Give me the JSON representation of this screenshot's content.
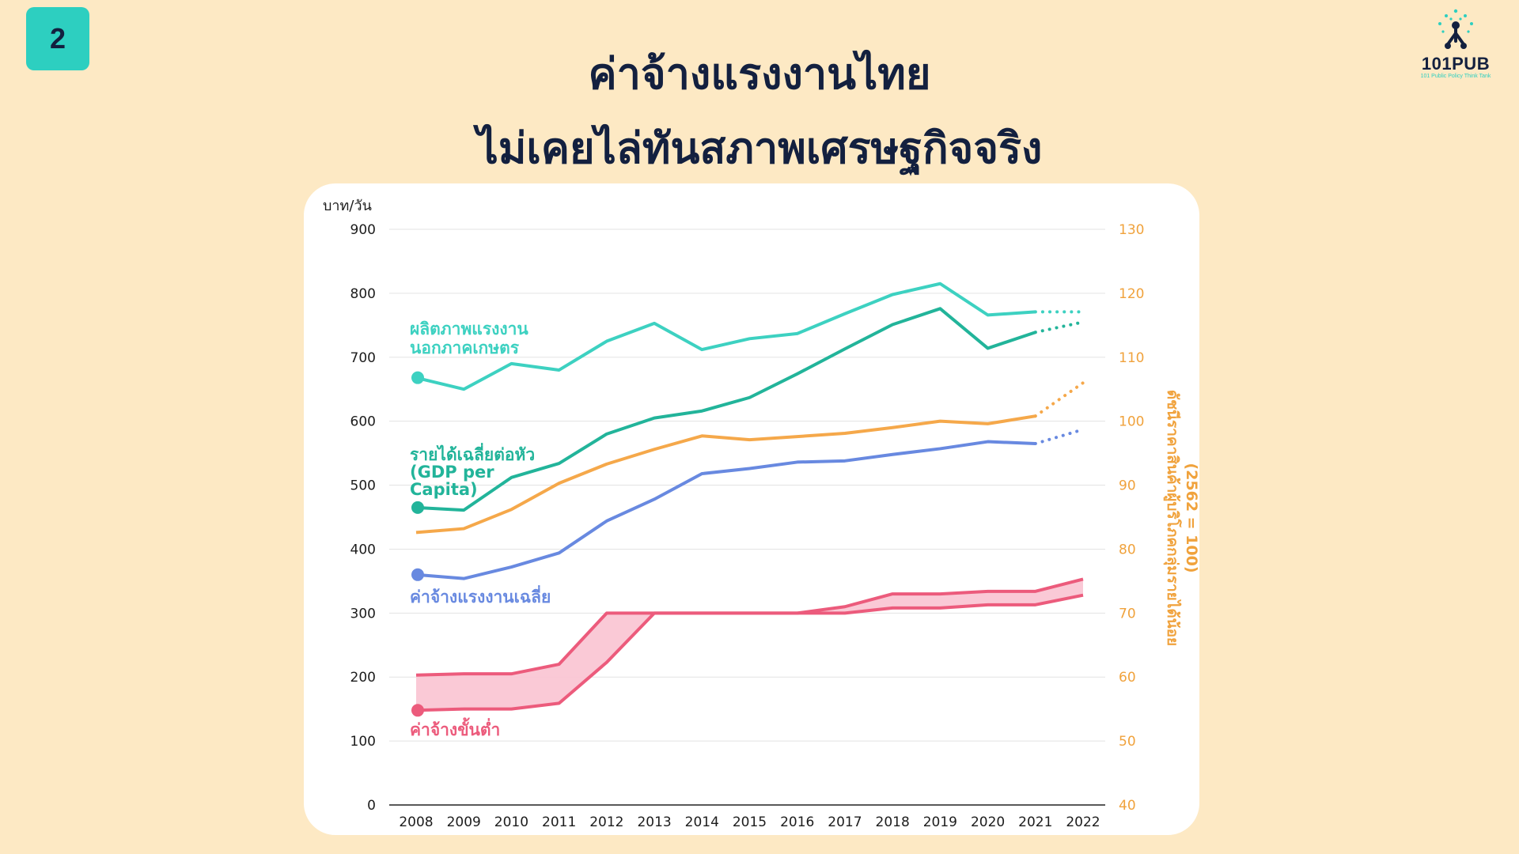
{
  "slide": {
    "number": "2",
    "title_line1": "ค่าจ้างแรงงานไทย",
    "title_line2": "ไม่เคยไล่ทันสภาพเศรษฐกิจจริง"
  },
  "logo": {
    "name": "101PUB",
    "tagline": "101 Public Policy Think Tank"
  },
  "colors": {
    "background": "#fde9c4",
    "title": "#13203f",
    "badge": "#2dcfc0",
    "productivity": "#3dd1c1",
    "gdp": "#22b49a",
    "cpi": "#f5a84a",
    "avg_wage": "#6889e0",
    "min_wage": "#ec5b7c",
    "min_wage_band": "#f9c3d1",
    "right_axis": "#f0a23c"
  },
  "chart_data": {
    "type": "line",
    "x": [
      "2008",
      "2009",
      "2010",
      "2011",
      "2012",
      "2013",
      "2014",
      "2015",
      "2016",
      "2017",
      "2018",
      "2019",
      "2020",
      "2021",
      "2022"
    ],
    "y_left": {
      "unit_label": "บาท/วัน",
      "ylim": [
        0,
        900
      ],
      "ticks": [
        "0",
        "100",
        "200",
        "300",
        "400",
        "500",
        "600",
        "700",
        "800",
        "900"
      ]
    },
    "y_right": {
      "label": "ดัชนีราคาสินค้าผู้บริโภคกลุ่มรายได้น้อย\n(2562 = 100)",
      "ylim": [
        40,
        130
      ],
      "ticks": [
        "40",
        "50",
        "60",
        "70",
        "80",
        "90",
        "100",
        "110",
        "120",
        "130"
      ]
    },
    "grid": true,
    "series": [
      {
        "name": "ผลิตภาพแรงงาน\nนอกภาคเกษตร",
        "axis": "left",
        "values": [
          668,
          650,
          690,
          680,
          725,
          753,
          712,
          729,
          737,
          768,
          798,
          815,
          766,
          771,
          771
        ],
        "projected_from": 2021
      },
      {
        "name": "รายได้เฉลี่ยต่อหัว\n(GDP per\nCapita)",
        "axis": "left",
        "values": [
          465,
          461,
          512,
          534,
          580,
          605,
          616,
          637,
          674,
          713,
          751,
          776,
          714,
          739,
          755
        ],
        "projected_from": 2021
      },
      {
        "name": "ดัชนีราคาสินค้าผู้บริโภคกลุ่มรายได้น้อย",
        "axis": "right",
        "values": [
          82.6,
          83.2,
          86.2,
          90.3,
          93.3,
          95.6,
          97.7,
          97.1,
          97.6,
          98.1,
          99.0,
          100.0,
          99.6,
          100.8,
          106.0
        ],
        "projected_from": 2021
      },
      {
        "name": "ค่าจ้างแรงงานเฉลี่ย",
        "axis": "left",
        "values": [
          360,
          354,
          372,
          394,
          444,
          478,
          518,
          526,
          536,
          538,
          548,
          557,
          568,
          565,
          587
        ],
        "projected_from": 2021
      }
    ],
    "band": {
      "name": "ค่าจ้างขั้นต่ำ",
      "axis": "left",
      "upper": [
        203,
        205,
        205,
        220,
        300,
        300,
        300,
        300,
        300,
        310,
        330,
        330,
        334,
        334,
        353
      ],
      "lower": [
        148,
        150,
        150,
        159,
        223,
        300,
        300,
        300,
        300,
        300,
        308,
        308,
        313,
        313,
        328
      ]
    }
  }
}
